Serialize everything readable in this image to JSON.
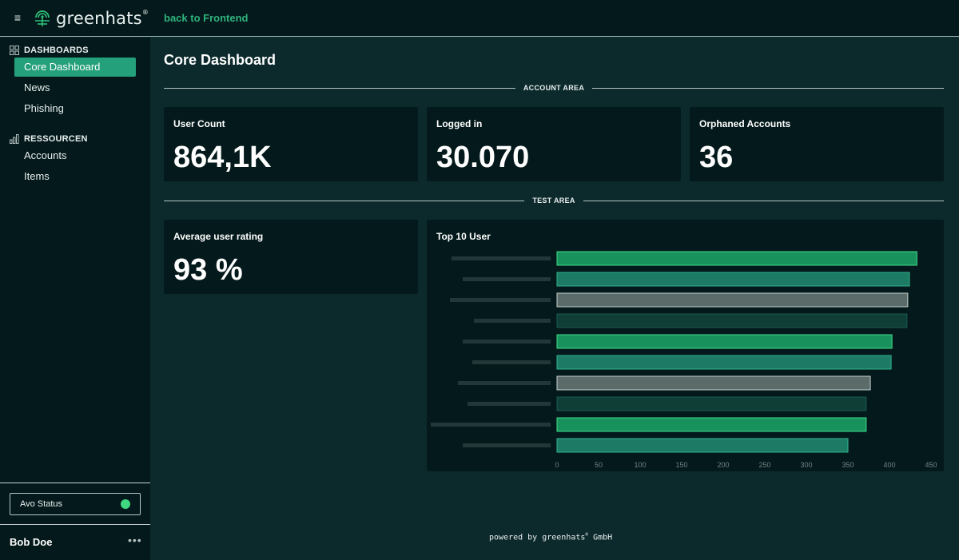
{
  "header": {
    "logo_text": "greenhats",
    "logo_mark": "®",
    "back_link": "back to Frontend",
    "menu_icon": "hamburger-icon"
  },
  "sidebar": {
    "sections": [
      {
        "label": "DASHBOARDS",
        "icon": "grid-icon",
        "items": [
          {
            "label": "Core Dashboard",
            "active": true
          },
          {
            "label": "News",
            "active": false
          },
          {
            "label": "Phishing",
            "active": false
          }
        ]
      },
      {
        "label": "RESSOURCEN",
        "icon": "bar-chart-icon",
        "items": [
          {
            "label": "Accounts",
            "active": false
          },
          {
            "label": "Items",
            "active": false
          }
        ]
      }
    ],
    "status": {
      "label": "Avo Status",
      "color": "#3fd97f"
    },
    "user": {
      "name": "Bob Doe",
      "menu_icon": "more-horizontal-icon"
    }
  },
  "main": {
    "title": "Core Dashboard",
    "account_area": {
      "label": "ACCOUNT AREA",
      "cards": [
        {
          "title": "User Count",
          "value": "864,1K"
        },
        {
          "title": "Logged in",
          "value": "30.070"
        },
        {
          "title": "Orphaned Accounts",
          "value": "36"
        }
      ]
    },
    "test_area": {
      "label": "TEST AREA",
      "rating_card": {
        "title": "Average user rating",
        "value": "93 %"
      },
      "chart_card": {
        "title": "Top 10 User"
      }
    }
  },
  "footer": {
    "text": "powered by greenhats",
    "mark": "®",
    "suffix": " GmbH"
  },
  "colors": {
    "background": "#0c2a2c",
    "panel": "#04191b",
    "accent": "#24a07a",
    "link": "#2fb37d"
  },
  "chart_data": {
    "type": "bar",
    "orientation": "horizontal",
    "title": "Top 10 User",
    "categories_redacted": true,
    "values": [
      433,
      424,
      422,
      421,
      403,
      402,
      377,
      372,
      372,
      350
    ],
    "bar_colors": [
      "#19915c",
      "#1d7a64",
      "#5a6b6a",
      "#0f3e37",
      "#19915c",
      "#1d7a64",
      "#5a6b6a",
      "#0f3e37",
      "#19915c",
      "#1d7a64"
    ],
    "bar_borders": [
      "#3fe08a",
      "#2fb58a",
      "#c7d0cf",
      "#1c5a4f",
      "#3fe08a",
      "#2fb58a",
      "#c7d0cf",
      "#1c5a4f",
      "#3fe08a",
      "#2fb58a"
    ],
    "xticks": [
      0,
      50,
      100,
      150,
      200,
      250,
      300,
      350,
      400,
      450
    ],
    "xlim": [
      0,
      450
    ],
    "grid": false
  }
}
